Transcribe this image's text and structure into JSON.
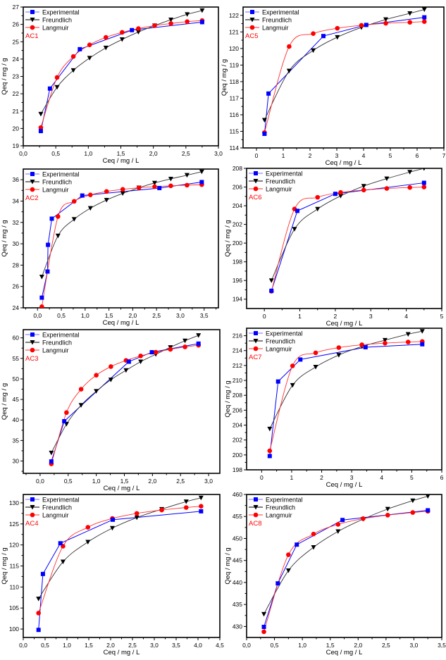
{
  "figure": {
    "legend_labels": [
      "Experimental",
      "Freundlich",
      "Langmuir"
    ],
    "series_colors": {
      "Experimental": "#0000ff",
      "Freundlich": "#000000",
      "Langmuir": "#ff0000"
    },
    "panel_label_color": "#ff0000"
  },
  "chart_data": [
    {
      "type": "line",
      "panel_label": "AC1",
      "xlabel": "Ceq / mg / L",
      "ylabel": "Qeq / mg / g",
      "xlim": [
        0.0,
        3.0
      ],
      "ylim": [
        19,
        27
      ],
      "xticks": [
        0.0,
        0.5,
        1.0,
        1.5,
        2.0,
        2.5,
        3.0
      ],
      "xtick_labels": [
        "0,0",
        "0,5",
        "1,0",
        "1,5",
        "2,0",
        "2,5",
        "3,0"
      ],
      "yticks": [
        19,
        20,
        21,
        22,
        23,
        24,
        25,
        26,
        27
      ],
      "ytick_labels": [
        "19",
        "20",
        "21",
        "22",
        "23",
        "24",
        "25",
        "26",
        "27"
      ],
      "legend": "top-left",
      "series": [
        {
          "name": "Experimental",
          "marker": "square",
          "x": [
            0.27,
            0.41,
            0.87,
            1.67,
            2.75
          ],
          "y": [
            19.85,
            22.3,
            24.57,
            25.67,
            26.13
          ]
        },
        {
          "name": "Freundlich",
          "marker": "triangle-down",
          "x": [
            0.27,
            0.52,
            0.77,
            1.02,
            1.27,
            1.52,
            1.77,
            2.02,
            2.27,
            2.52,
            2.75
          ],
          "y": [
            20.83,
            22.38,
            23.35,
            24.06,
            24.65,
            25.13,
            25.56,
            25.93,
            26.27,
            26.58,
            26.8
          ]
        },
        {
          "name": "Langmuir",
          "marker": "circle",
          "x": [
            0.27,
            0.52,
            0.77,
            1.02,
            1.27,
            1.52,
            1.77,
            2.02,
            2.27,
            2.52,
            2.75
          ],
          "y": [
            20.05,
            22.94,
            24.15,
            24.82,
            25.25,
            25.54,
            25.76,
            25.93,
            26.05,
            26.16,
            26.22
          ]
        }
      ]
    },
    {
      "type": "line",
      "panel_label": "AC5",
      "xlabel": "Ceq / mg / L",
      "ylabel": "Qeq / mg / g",
      "xlim": [
        -0.5,
        7
      ],
      "ylim": [
        114,
        122.5
      ],
      "xticks": [
        0,
        1,
        2,
        3,
        4,
        5,
        6,
        7
      ],
      "xtick_labels": [
        "0",
        "1",
        "2",
        "3",
        "4",
        "5",
        "6",
        "7"
      ],
      "yticks": [
        114,
        115,
        116,
        117,
        118,
        119,
        120,
        121,
        122
      ],
      "ytick_labels": [
        "114",
        "115",
        "116",
        "117",
        "118",
        "119",
        "120",
        "121",
        "122"
      ],
      "legend": "top-left",
      "series": [
        {
          "name": "Experimental",
          "marker": "square",
          "x": [
            0.3,
            0.45,
            2.5,
            4.1,
            6.27
          ],
          "y": [
            114.85,
            117.28,
            120.75,
            121.42,
            121.88
          ]
        },
        {
          "name": "Freundlich",
          "marker": "triangle-down",
          "x": [
            0.3,
            1.22,
            2.12,
            3.02,
            3.92,
            4.83,
            5.73,
            6.27
          ],
          "y": [
            115.68,
            118.65,
            119.88,
            120.68,
            121.27,
            121.75,
            122.12,
            122.35
          ]
        },
        {
          "name": "Langmuir",
          "marker": "circle",
          "x": [
            0.3,
            1.22,
            2.12,
            3.02,
            3.92,
            4.83,
            5.73,
            6.27
          ],
          "y": [
            114.93,
            120.12,
            120.9,
            121.22,
            121.4,
            121.52,
            121.58,
            121.62
          ]
        }
      ]
    },
    {
      "type": "line",
      "panel_label": "AC2",
      "xlabel": "Ceq / mg / L",
      "ylabel": "Qeq / mg / g",
      "xlim": [
        -0.3,
        3.8
      ],
      "ylim": [
        24,
        37
      ],
      "xticks": [
        0.0,
        0.5,
        1.0,
        1.5,
        2.0,
        2.5,
        3.0,
        3.5
      ],
      "xtick_labels": [
        "0,0",
        "0,5",
        "1,0",
        "1,5",
        "2,0",
        "2,5",
        "3,0",
        "3,5"
      ],
      "yticks": [
        24,
        26,
        28,
        30,
        32,
        34,
        36
      ],
      "ytick_labels": [
        "24",
        "26",
        "28",
        "30",
        "32",
        "34",
        "36"
      ],
      "legend": "top-left",
      "series": [
        {
          "name": "Experimental",
          "marker": "square",
          "x": [
            0.09,
            0.21,
            0.22,
            0.3,
            0.94,
            2.56,
            3.45
          ],
          "y": [
            24.95,
            27.4,
            29.9,
            32.35,
            34.52,
            35.22,
            35.78
          ]
        },
        {
          "name": "Freundlich",
          "marker": "triangle-down",
          "x": [
            0.09,
            0.43,
            0.77,
            1.11,
            1.45,
            1.79,
            2.13,
            2.46,
            2.8,
            3.14,
            3.45
          ],
          "y": [
            26.9,
            30.75,
            32.3,
            33.33,
            34.1,
            34.72,
            35.25,
            35.7,
            36.08,
            36.43,
            36.75
          ]
        },
        {
          "name": "Langmuir",
          "marker": "circle",
          "x": [
            0.09,
            0.43,
            0.77,
            1.11,
            1.45,
            1.79,
            2.13,
            2.46,
            2.8,
            3.14,
            3.45
          ],
          "y": [
            24.1,
            32.55,
            33.98,
            34.58,
            34.9,
            35.1,
            35.25,
            35.35,
            35.43,
            35.49,
            35.54
          ]
        }
      ]
    },
    {
      "type": "line",
      "panel_label": "AC6",
      "xlabel": "Ceq / mg / L",
      "ylabel": "Qeq / mg / g",
      "xlim": [
        -0.5,
        5
      ],
      "ylim": [
        193,
        208
      ],
      "xticks": [
        0,
        1,
        2,
        3,
        4,
        5
      ],
      "xtick_labels": [
        "0",
        "1",
        "2",
        "3",
        "4",
        "5"
      ],
      "yticks": [
        194,
        196,
        198,
        200,
        202,
        204,
        206,
        208
      ],
      "ytick_labels": [
        "194",
        "196",
        "198",
        "200",
        "202",
        "204",
        "206",
        "208"
      ],
      "legend": "top-left",
      "series": [
        {
          "name": "Experimental",
          "marker": "square",
          "x": [
            0.2,
            0.93,
            2.0,
            4.5
          ],
          "y": [
            194.9,
            203.45,
            205.27,
            206.45
          ]
        },
        {
          "name": "Freundlich",
          "marker": "triangle-down",
          "x": [
            0.2,
            0.85,
            1.5,
            2.15,
            2.8,
            3.45,
            4.1,
            4.5
          ],
          "y": [
            196.0,
            201.5,
            203.65,
            205.05,
            206.1,
            206.9,
            207.6,
            208.0
          ]
        },
        {
          "name": "Langmuir",
          "marker": "circle",
          "x": [
            0.2,
            0.85,
            1.5,
            2.15,
            2.8,
            3.45,
            4.1,
            4.5
          ],
          "y": [
            194.85,
            203.65,
            204.9,
            205.42,
            205.68,
            205.85,
            205.95,
            206.0
          ]
        }
      ]
    },
    {
      "type": "line",
      "panel_label": "AC3",
      "xlabel": "Ceq / mg / L",
      "ylabel": "Qeq / mg / g",
      "xlim": [
        -0.3,
        3.2
      ],
      "ylim": [
        27,
        62
      ],
      "xticks": [
        0.0,
        0.5,
        1.0,
        1.5,
        2.0,
        2.5,
        3.0
      ],
      "xtick_labels": [
        "0,0",
        "0,5",
        "1,0",
        "1,5",
        "2,0",
        "2,5",
        "3,0"
      ],
      "yticks": [
        30,
        35,
        40,
        45,
        50,
        55,
        60
      ],
      "ytick_labels": [
        "30",
        "35",
        "40",
        "45",
        "50",
        "55",
        "60"
      ],
      "legend": "top-left",
      "series": [
        {
          "name": "Experimental",
          "marker": "square",
          "x": [
            0.2,
            0.43,
            1.58,
            1.99,
            2.82
          ],
          "y": [
            29.9,
            39.7,
            54.2,
            56.5,
            58.6
          ]
        },
        {
          "name": "Freundlich",
          "marker": "triangle-down",
          "x": [
            0.2,
            0.47,
            0.73,
            1.0,
            1.26,
            1.53,
            1.79,
            2.06,
            2.32,
            2.58,
            2.82
          ],
          "y": [
            32.0,
            39.0,
            43.6,
            47.0,
            49.8,
            52.1,
            54.2,
            56.0,
            57.7,
            59.3,
            60.6
          ]
        },
        {
          "name": "Langmuir",
          "marker": "circle",
          "x": [
            0.2,
            0.47,
            0.73,
            1.0,
            1.26,
            1.53,
            1.79,
            2.06,
            2.32,
            2.58,
            2.82
          ],
          "y": [
            29.3,
            41.8,
            47.5,
            50.9,
            53.0,
            54.5,
            55.6,
            56.5,
            57.2,
            57.8,
            58.2
          ]
        }
      ]
    },
    {
      "type": "line",
      "panel_label": "AC7",
      "xlabel": "Ceq / mg / L",
      "ylabel": "Qeq / mg / g",
      "xlim": [
        -0.5,
        6
      ],
      "ylim": [
        198,
        217
      ],
      "xticks": [
        0,
        1,
        2,
        3,
        4,
        5,
        6
      ],
      "xtick_labels": [
        "0",
        "1",
        "2",
        "3",
        "4",
        "5",
        "6"
      ],
      "yticks": [
        198,
        200,
        202,
        204,
        206,
        208,
        210,
        212,
        214,
        216
      ],
      "ytick_labels": [
        "198",
        "200",
        "202",
        "204",
        "206",
        "208",
        "210",
        "212",
        "214",
        "216"
      ],
      "legend": "top-left",
      "series": [
        {
          "name": "Experimental",
          "marker": "square",
          "x": [
            0.27,
            0.55,
            1.29,
            3.46,
            5.35
          ],
          "y": [
            199.85,
            209.85,
            212.8,
            214.45,
            214.85
          ]
        },
        {
          "name": "Freundlich",
          "marker": "triangle-down",
          "x": [
            0.27,
            1.03,
            1.8,
            2.57,
            3.34,
            4.11,
            4.88,
            5.35
          ],
          "y": [
            203.5,
            209.35,
            211.8,
            213.4,
            214.55,
            215.4,
            216.2,
            216.6
          ]
        },
        {
          "name": "Langmuir",
          "marker": "circle",
          "x": [
            0.27,
            1.03,
            1.8,
            2.57,
            3.34,
            4.11,
            4.88,
            5.35
          ],
          "y": [
            200.55,
            211.95,
            213.7,
            214.4,
            214.78,
            215.0,
            215.15,
            215.22
          ]
        }
      ]
    },
    {
      "type": "line",
      "panel_label": "AC4",
      "xlabel": "Ceq / mg / L",
      "ylabel": "Qeq / mg / g",
      "xlim": [
        0.0,
        4.5
      ],
      "ylim": [
        98,
        132
      ],
      "xticks": [
        0.0,
        0.5,
        1.0,
        1.5,
        2.0,
        2.5,
        3.0,
        3.5,
        4.0,
        4.5
      ],
      "xtick_labels": [
        "0,0",
        "0,5",
        "1,0",
        "1,5",
        "2,0",
        "2,5",
        "3,0",
        "3,5",
        "4,0",
        "4,5"
      ],
      "yticks": [
        100,
        105,
        110,
        115,
        120,
        125,
        130
      ],
      "ytick_labels": [
        "100",
        "105",
        "110",
        "115",
        "120",
        "125",
        "130"
      ],
      "legend": "top-left",
      "series": [
        {
          "name": "Experimental",
          "marker": "square",
          "x": [
            0.35,
            0.45,
            0.85,
            2.05,
            4.07
          ],
          "y": [
            99.8,
            113.1,
            120.4,
            126.0,
            128.0
          ]
        },
        {
          "name": "Freundlich",
          "marker": "triangle-down",
          "x": [
            0.35,
            0.91,
            1.48,
            2.04,
            2.6,
            3.17,
            3.73,
            4.07
          ],
          "y": [
            107.2,
            116.0,
            120.7,
            124.0,
            126.5,
            128.5,
            130.3,
            131.2
          ]
        },
        {
          "name": "Langmuir",
          "marker": "circle",
          "x": [
            0.35,
            0.91,
            1.48,
            2.04,
            2.6,
            3.17,
            3.73,
            4.07
          ],
          "y": [
            103.8,
            119.7,
            124.2,
            126.3,
            127.5,
            128.3,
            128.9,
            129.2
          ]
        }
      ]
    },
    {
      "type": "line",
      "panel_label": "AC8",
      "xlabel": "Ceq / mg / L",
      "ylabel": "Qeq / mg / g",
      "xlim": [
        0.0,
        3.5
      ],
      "ylim": [
        427.5,
        460
      ],
      "xticks": [
        0.0,
        0.5,
        1.0,
        1.5,
        2.0,
        2.5,
        3.0,
        3.5
      ],
      "xtick_labels": [
        "0,0",
        "0,5",
        "1,0",
        "1,5",
        "2,0",
        "2,5",
        "3,0",
        "3,5"
      ],
      "yticks": [
        430,
        435,
        440,
        445,
        450,
        455,
        460
      ],
      "ytick_labels": [
        "430",
        "435",
        "440",
        "445",
        "450",
        "455",
        "460"
      ],
      "legend": "top-left",
      "series": [
        {
          "name": "Experimental",
          "marker": "square",
          "x": [
            0.31,
            0.56,
            0.9,
            1.72,
            3.25
          ],
          "y": [
            429.9,
            439.8,
            448.6,
            454.2,
            456.4
          ]
        },
        {
          "name": "Freundlich",
          "marker": "triangle-down",
          "x": [
            0.31,
            0.75,
            1.2,
            1.64,
            2.09,
            2.53,
            2.98,
            3.25
          ],
          "y": [
            432.8,
            442.7,
            448.0,
            451.6,
            454.4,
            456.7,
            458.6,
            459.6
          ]
        },
        {
          "name": "Langmuir",
          "marker": "circle",
          "x": [
            0.31,
            0.75,
            1.2,
            1.64,
            2.09,
            2.53,
            2.98,
            3.25
          ],
          "y": [
            428.8,
            446.3,
            451.0,
            453.2,
            454.5,
            455.3,
            455.9,
            456.2
          ]
        }
      ]
    }
  ]
}
